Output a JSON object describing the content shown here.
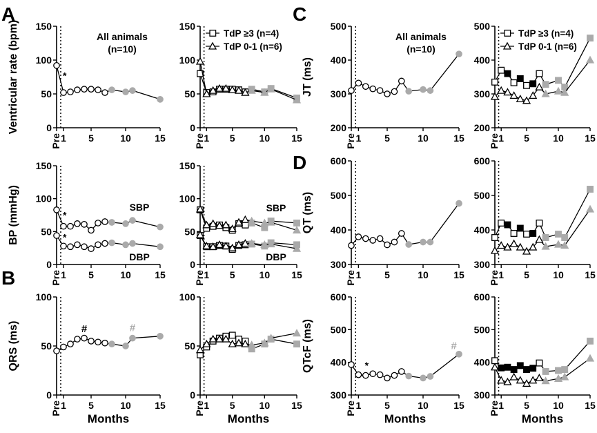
{
  "figure": {
    "panel_letters": [
      "A",
      "B",
      "C",
      "D"
    ],
    "x_tick_labels": [
      "Pre",
      "1",
      "5",
      "10",
      "15"
    ],
    "xlabel": "Months",
    "colors": {
      "axis": "#000000",
      "gray_marker": "#aaaaaa",
      "black": "#000000",
      "white": "#ffffff"
    }
  },
  "chart_data": [
    {
      "type": "line",
      "title": "",
      "ylabel": "Ventricular rate (bpm)",
      "xlabel": "",
      "ylim": [
        0,
        150
      ],
      "yticks": [
        0,
        50,
        100,
        150
      ],
      "annotation": "All animals\n(n=10)",
      "series": [
        {
          "name": "All animals",
          "marker": "circle",
          "x": [
            0,
            1,
            2,
            3,
            4,
            5,
            6,
            7,
            8,
            10,
            11,
            15
          ],
          "values": [
            92,
            52,
            53,
            56,
            57,
            57,
            56,
            52,
            56,
            53,
            55,
            42
          ],
          "gray_from": 8
        }
      ],
      "stars": [
        {
          "x": 0.5,
          "y": 72,
          "text": "*"
        }
      ]
    },
    {
      "type": "line",
      "ylabel": "",
      "xlabel": "",
      "ylim": [
        0,
        150
      ],
      "yticks": [
        0,
        50,
        100,
        150
      ],
      "series": [
        {
          "name": "TdP ≥3 (n=4)",
          "marker": "square",
          "x": [
            0,
            1,
            2,
            3,
            4,
            5,
            6,
            7,
            8,
            10,
            11,
            15
          ],
          "values": [
            80,
            52,
            53,
            57,
            57,
            57,
            56,
            53,
            57,
            53,
            58,
            44
          ],
          "gray_from": 8
        },
        {
          "name": "TdP 0-1 (n=6)",
          "marker": "triangle",
          "x": [
            0,
            1,
            2,
            3,
            4,
            5,
            6,
            7,
            8,
            10,
            11,
            15
          ],
          "values": [
            98,
            50,
            55,
            58,
            58,
            56,
            55,
            52,
            55,
            52,
            57,
            41
          ],
          "gray_from": 8
        }
      ]
    },
    {
      "type": "line",
      "ylabel": "BP (mmHg)",
      "xlabel": "",
      "ylim": [
        0,
        150
      ],
      "yticks": [
        0,
        50,
        100,
        150
      ],
      "labels": [
        "SBP",
        "DBP"
      ],
      "series": [
        {
          "name": "SBP",
          "marker": "circle",
          "x": [
            0,
            1,
            2,
            3,
            4,
            5,
            6,
            7,
            8,
            10,
            11,
            15
          ],
          "values": [
            83,
            58,
            58,
            62,
            61,
            52,
            63,
            65,
            64,
            62,
            67,
            57
          ],
          "gray_from": 8
        },
        {
          "name": "DBP",
          "marker": "circle",
          "x": [
            0,
            1,
            2,
            3,
            4,
            5,
            6,
            7,
            8,
            10,
            11,
            15
          ],
          "values": [
            44,
            28,
            27,
            30,
            27,
            24,
            30,
            32,
            33,
            30,
            32,
            27
          ],
          "gray_from": 8
        }
      ],
      "stars": [
        {
          "x": 0.5,
          "y": 70,
          "text": "*"
        },
        {
          "x": 0.5,
          "y": 36,
          "text": "*"
        }
      ]
    },
    {
      "type": "line",
      "ylabel": "",
      "xlabel": "",
      "ylim": [
        0,
        150
      ],
      "yticks": [
        0,
        50,
        100,
        150
      ],
      "labels": [
        "SBP",
        "DBP"
      ],
      "series": [
        {
          "name": "SBP TdP ≥3",
          "marker": "square",
          "x": [
            0,
            1,
            2,
            3,
            4,
            5,
            6,
            7,
            8,
            10,
            11,
            15
          ],
          "values": [
            83,
            55,
            58,
            60,
            56,
            52,
            62,
            60,
            63,
            56,
            66,
            63
          ],
          "gray_from": 8
        },
        {
          "name": "SBP TdP 0-1",
          "marker": "triangle",
          "x": [
            0,
            1,
            2,
            3,
            4,
            5,
            6,
            7,
            8,
            10,
            11,
            15
          ],
          "values": [
            84,
            60,
            62,
            59,
            60,
            54,
            64,
            68,
            66,
            63,
            64,
            52
          ],
          "gray_from": 8
        },
        {
          "name": "DBP TdP ≥3",
          "marker": "square",
          "x": [
            0,
            1,
            2,
            3,
            4,
            5,
            6,
            7,
            8,
            10,
            11,
            15
          ],
          "values": [
            44,
            27,
            27,
            29,
            28,
            23,
            29,
            30,
            31,
            28,
            33,
            30
          ],
          "gray_from": 8
        },
        {
          "name": "DBP TdP 0-1",
          "marker": "triangle",
          "x": [
            0,
            1,
            2,
            3,
            4,
            5,
            6,
            7,
            8,
            10,
            11,
            15
          ],
          "values": [
            45,
            28,
            27,
            30,
            28,
            25,
            30,
            32,
            32,
            30,
            31,
            24
          ],
          "gray_from": 8
        }
      ]
    },
    {
      "type": "line",
      "ylabel": "QRS (ms)",
      "xlabel": "Months",
      "ylim": [
        0,
        100
      ],
      "yticks": [
        0,
        50,
        100
      ],
      "series": [
        {
          "name": "All animals",
          "marker": "circle",
          "x": [
            0,
            1,
            2,
            3,
            4,
            5,
            6,
            7,
            8,
            10,
            11,
            15
          ],
          "values": [
            45,
            49,
            52,
            57,
            58,
            55,
            54,
            53,
            52,
            50,
            58,
            60
          ],
          "gray_from": 8
        }
      ],
      "hashes": [
        {
          "x": 4,
          "y": 64,
          "text": "#",
          "color": "black"
        },
        {
          "x": 11,
          "y": 65,
          "text": "#",
          "color": "gray"
        }
      ]
    },
    {
      "type": "line",
      "ylabel": "",
      "xlabel": "Months",
      "ylim": [
        0,
        100
      ],
      "yticks": [
        0,
        50,
        100
      ],
      "series": [
        {
          "name": "TdP ≥3",
          "marker": "square",
          "x": [
            0,
            1,
            2,
            3,
            4,
            5,
            6,
            7,
            8,
            10,
            11,
            15
          ],
          "values": [
            41,
            49,
            55,
            58,
            60,
            61,
            57,
            55,
            47,
            52,
            57,
            52
          ],
          "gray_from": 8
        },
        {
          "name": "TdP 0-1",
          "marker": "triangle",
          "x": [
            0,
            1,
            2,
            3,
            4,
            5,
            6,
            7,
            8,
            10,
            11,
            15
          ],
          "values": [
            46,
            52,
            57,
            57,
            57,
            52,
            53,
            52,
            51,
            53,
            58,
            63
          ],
          "gray_from": 8
        }
      ]
    },
    {
      "type": "line",
      "ylabel": "JT (ms)",
      "xlabel": "",
      "ylim": [
        200,
        500
      ],
      "yticks": [
        200,
        300,
        400,
        500
      ],
      "annotation": "All animals\n(n=10)",
      "series": [
        {
          "name": "All animals",
          "marker": "circle",
          "x": [
            0,
            1,
            2,
            3,
            4,
            5,
            6,
            7,
            8,
            10,
            11,
            15
          ],
          "values": [
            310,
            332,
            322,
            315,
            310,
            300,
            307,
            338,
            308,
            313,
            310,
            418
          ],
          "gray_from": 8
        }
      ]
    },
    {
      "type": "line",
      "ylabel": "",
      "xlabel": "",
      "ylim": [
        200,
        500
      ],
      "yticks": [
        200,
        300,
        400,
        500
      ],
      "series": [
        {
          "name": "TdP ≥3 (n=4)",
          "marker": "square",
          "x": [
            0,
            1,
            2,
            3,
            4,
            5,
            6,
            7,
            8,
            10,
            11,
            15
          ],
          "values": [
            335,
            370,
            360,
            333,
            345,
            325,
            330,
            360,
            328,
            340,
            320,
            465
          ],
          "gray_from": 8,
          "filled": [
            2,
            4,
            6
          ]
        },
        {
          "name": "TdP 0-1 (n=6)",
          "marker": "triangle",
          "x": [
            0,
            1,
            2,
            3,
            4,
            5,
            6,
            7,
            8,
            10,
            11,
            15
          ],
          "values": [
            292,
            310,
            305,
            295,
            285,
            280,
            295,
            320,
            300,
            308,
            304,
            400
          ],
          "gray_from": 8
        }
      ]
    },
    {
      "type": "line",
      "ylabel": "QT (ms)",
      "xlabel": "",
      "ylim": [
        300,
        600
      ],
      "yticks": [
        300,
        400,
        500,
        600
      ],
      "series": [
        {
          "name": "All animals",
          "marker": "circle",
          "x": [
            0,
            1,
            2,
            3,
            4,
            5,
            6,
            7,
            8,
            10,
            11,
            15
          ],
          "values": [
            355,
            380,
            375,
            370,
            375,
            357,
            365,
            390,
            358,
            365,
            365,
            477
          ],
          "gray_from": 8
        }
      ]
    },
    {
      "type": "line",
      "ylabel": "",
      "xlabel": "",
      "ylim": [
        300,
        600
      ],
      "yticks": [
        300,
        400,
        500,
        600
      ],
      "series": [
        {
          "name": "TdP ≥3",
          "marker": "square",
          "x": [
            0,
            1,
            2,
            3,
            4,
            5,
            6,
            7,
            8,
            10,
            11,
            15
          ],
          "values": [
            378,
            420,
            415,
            390,
            405,
            388,
            390,
            420,
            378,
            388,
            378,
            518
          ],
          "gray_from": 8,
          "filled": [
            2,
            4,
            6
          ]
        },
        {
          "name": "TdP 0-1",
          "marker": "triangle",
          "x": [
            0,
            1,
            2,
            3,
            4,
            5,
            6,
            7,
            8,
            10,
            11,
            15
          ],
          "values": [
            340,
            355,
            350,
            360,
            350,
            338,
            350,
            372,
            352,
            358,
            355,
            460
          ],
          "gray_from": 8
        }
      ]
    },
    {
      "type": "line",
      "ylabel": "QTcF (ms)",
      "xlabel": "Months",
      "ylim": [
        300,
        600
      ],
      "yticks": [
        300,
        400,
        500,
        600
      ],
      "series": [
        {
          "name": "All animals",
          "marker": "circle",
          "x": [
            0,
            1,
            2,
            3,
            4,
            5,
            6,
            7,
            8,
            10,
            11,
            15
          ],
          "values": [
            393,
            362,
            360,
            365,
            362,
            352,
            360,
            372,
            358,
            352,
            357,
            425
          ],
          "gray_from": 8
        }
      ],
      "stars": [
        {
          "x": 1.5,
          "y": 380,
          "text": "*"
        }
      ],
      "hashes": [
        {
          "x": 14.3,
          "y": 440,
          "text": "#",
          "color": "gray"
        }
      ]
    },
    {
      "type": "line",
      "ylabel": "",
      "xlabel": "Months",
      "ylim": [
        300,
        600
      ],
      "yticks": [
        300,
        400,
        500,
        600
      ],
      "series": [
        {
          "name": "TdP ≥3",
          "marker": "square",
          "x": [
            0,
            1,
            2,
            3,
            4,
            5,
            6,
            7,
            8,
            10,
            11,
            15
          ],
          "values": [
            405,
            383,
            385,
            378,
            390,
            378,
            382,
            398,
            372,
            375,
            378,
            465
          ],
          "gray_from": 8,
          "filled": [
            1,
            2,
            3,
            4,
            5,
            6
          ]
        },
        {
          "name": "TdP 0-1",
          "marker": "triangle",
          "x": [
            0,
            1,
            2,
            3,
            4,
            5,
            6,
            7,
            8,
            10,
            11,
            15
          ],
          "values": [
            385,
            345,
            340,
            355,
            345,
            335,
            345,
            352,
            343,
            350,
            355,
            412
          ],
          "gray_from": 8
        }
      ]
    }
  ]
}
